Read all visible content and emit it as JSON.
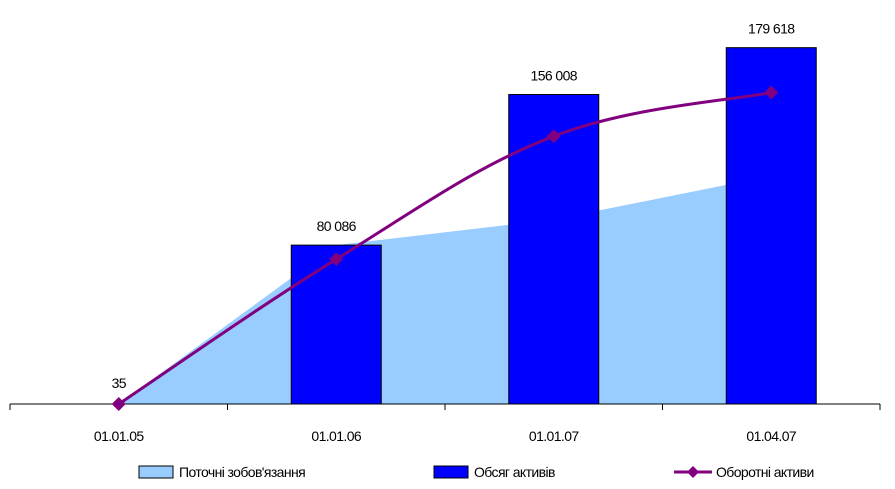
{
  "chart_data": {
    "type": "bar",
    "categories": [
      "01.01.05",
      "01.01.06",
      "01.01.07",
      "01.04.07"
    ],
    "ylim": [
      0,
      185000
    ],
    "grid": false,
    "legend_position": "bottom",
    "series": [
      {
        "name": "Поточні зобов'язання",
        "kind": "area",
        "color": "#99CCFF",
        "values": [
          0,
          80086,
          93000,
          115000
        ]
      },
      {
        "name": "Обсяг активів",
        "kind": "bar",
        "color": "#0000FF",
        "values": [
          35,
          80086,
          156008,
          179618
        ],
        "labels": [
          "35",
          "80 086",
          "156 008",
          "179 618"
        ]
      },
      {
        "name": "Оборотні активи",
        "kind": "line",
        "color": "#800080",
        "marker": "diamond",
        "values": [
          0,
          73000,
          135000,
          157000
        ]
      }
    ]
  }
}
